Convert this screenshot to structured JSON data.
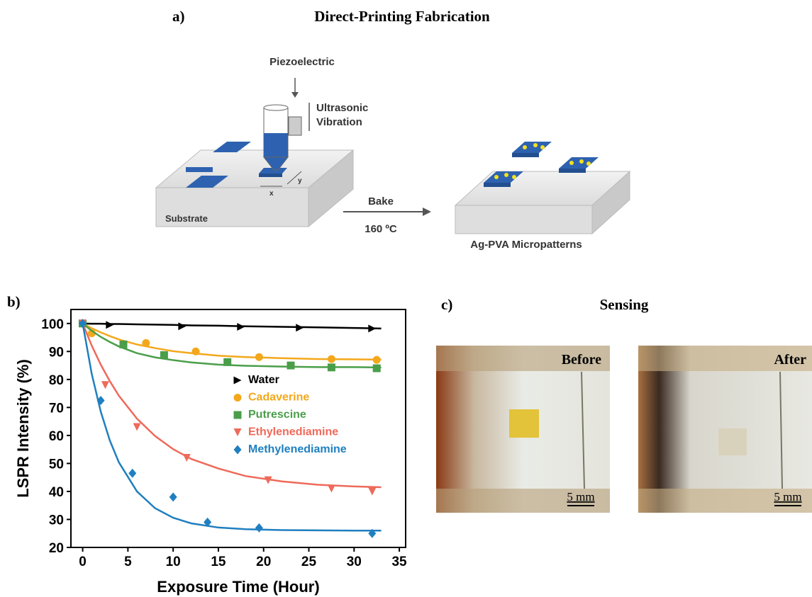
{
  "panel_a": {
    "label": "a)",
    "title": "Direct-Printing Fabrication",
    "piezo": "Piezoelectric",
    "vibration_1": "Ultrasonic",
    "vibration_2": "Vibration",
    "substrate": "Substrate",
    "axis_x": "x",
    "axis_y": "y",
    "bake": "Bake",
    "temperature": "160 ºC",
    "result": "Ag-PVA Micropatterns"
  },
  "panel_b": {
    "label": "b)"
  },
  "chart_data": {
    "type": "scatter",
    "x_label": "Exposure Time (Hour)",
    "y_label": "LSPR Intensity (%)",
    "xlim": [
      -1.3,
      35.7
    ],
    "xticks": [
      0,
      5,
      10,
      15,
      20,
      25,
      30,
      35
    ],
    "ylim": [
      20,
      105
    ],
    "yticks": [
      20,
      30,
      40,
      50,
      60,
      70,
      80,
      90,
      100
    ],
    "fit_x": [
      0,
      1,
      2,
      3,
      4,
      6,
      8,
      10,
      12,
      15,
      18,
      22,
      26,
      30,
      33
    ],
    "series": [
      {
        "name": "Water",
        "color": "#000000",
        "marker": "triangle-right",
        "x": [
          0,
          3,
          11,
          17.5,
          24,
          32
        ],
        "values": [
          100,
          99.5,
          99,
          98.8,
          98.5,
          98.2
        ],
        "fit": [
          100,
          99.9,
          99.9,
          99.8,
          99.8,
          99.7,
          99.6,
          99.5,
          99.3,
          99.2,
          99.0,
          98.8,
          98.6,
          98.4,
          98.2
        ]
      },
      {
        "name": "Cadaverine",
        "color": "#f3a81c",
        "marker": "circle",
        "x": [
          0,
          1,
          7,
          12.5,
          19.5,
          27.5,
          32.5
        ],
        "values": [
          100,
          96.5,
          93,
          90,
          88,
          87.3,
          87
        ],
        "fit": [
          100,
          98.3,
          96.8,
          95.5,
          94.3,
          92.5,
          91.2,
          90.1,
          89.4,
          88.5,
          88.0,
          87.6,
          87.3,
          87.2,
          87.1
        ]
      },
      {
        "name": "Putrescine",
        "color": "#4a9e4a",
        "marker": "square",
        "x": [
          0,
          4.5,
          9,
          16,
          23,
          27.5,
          32.5
        ],
        "values": [
          100,
          92.5,
          88.7,
          86.2,
          85,
          84.3,
          84
        ],
        "fit": [
          100,
          97.4,
          95.2,
          93.4,
          91.8,
          89.4,
          87.9,
          86.9,
          86.1,
          85.3,
          84.9,
          84.6,
          84.4,
          84.4,
          84.3
        ]
      },
      {
        "name": "Ethylenediamine",
        "color": "#ee6a5a",
        "marker": "triangle-down",
        "x": [
          0,
          2.5,
          6,
          11.5,
          20.5,
          27.5,
          32
        ],
        "values": [
          100,
          78,
          63,
          52,
          44,
          41,
          40
        ],
        "fit": [
          100,
          92.1,
          85.3,
          79.4,
          74.2,
          66.0,
          59.8,
          55.1,
          51.6,
          48.2,
          45.5,
          43.6,
          42.4,
          41.8,
          41.5
        ]
      },
      {
        "name": "Methylenediamine",
        "color": "#1f7fc0",
        "marker": "diamond",
        "x": [
          0,
          2,
          5.5,
          10,
          13.8,
          19.5,
          32
        ],
        "values": [
          100,
          72.5,
          46.5,
          38,
          29,
          27,
          25
        ],
        "fit": [
          100,
          82.0,
          68.5,
          58.2,
          50.4,
          40.0,
          34.0,
          30.6,
          28.6,
          27.1,
          26.5,
          26.2,
          26.1,
          26.0,
          26.0
        ]
      }
    ]
  },
  "panel_c": {
    "label": "c)",
    "title": "Sensing",
    "before": "Before",
    "after": "After",
    "scale_before": "5 mm",
    "scale_after": "5 mm"
  }
}
